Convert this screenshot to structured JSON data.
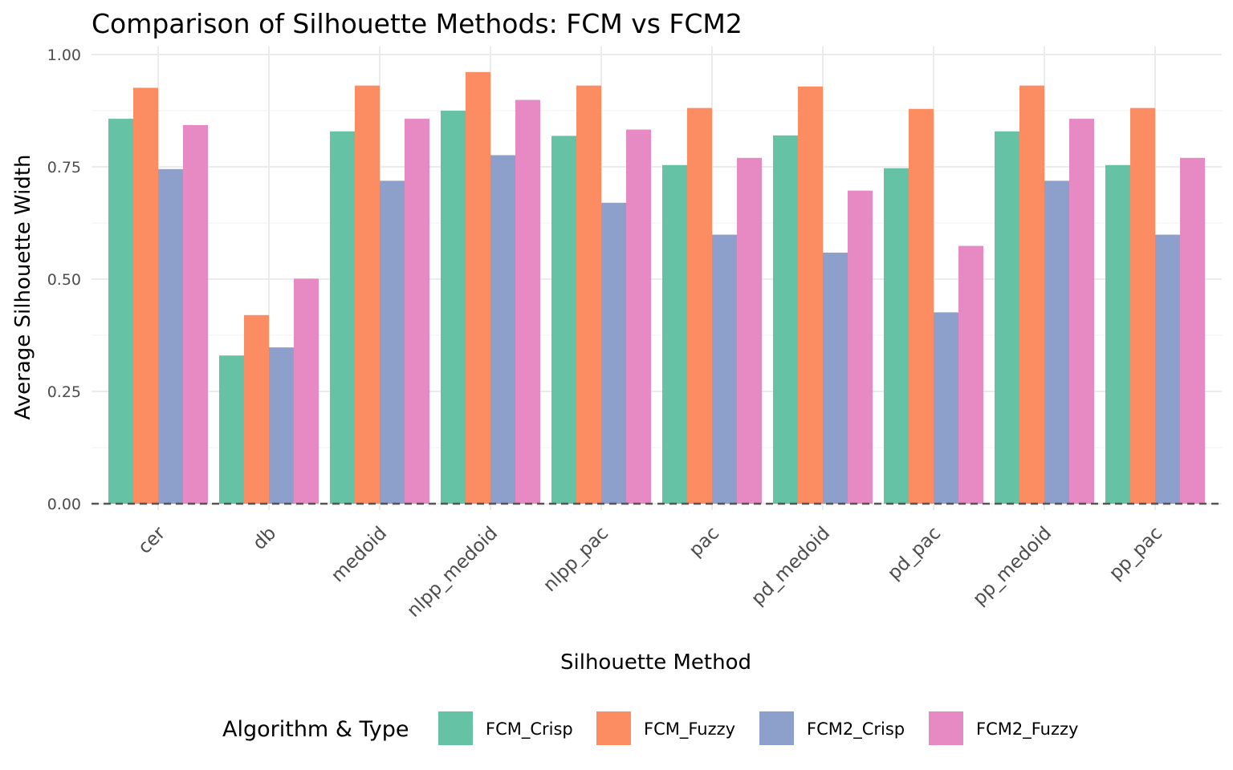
{
  "chart_data": {
    "type": "bar",
    "title": "Comparison of Silhouette Methods: FCM vs FCM2",
    "xlabel": "Silhouette Method",
    "ylabel": "Average Silhouette Width",
    "ylim": [
      0,
      1.0
    ],
    "y_ticks": [
      "0.00",
      "0.25",
      "0.50",
      "0.75",
      "1.00"
    ],
    "grid": true,
    "legend_title": "Algorithm & Type",
    "legend_position": "bottom",
    "reference_line": {
      "y": 0,
      "style": "dashed"
    },
    "categories": [
      "cer",
      "db",
      "medoid",
      "nlpp_medoid",
      "nlpp_pac",
      "pac",
      "pd_medoid",
      "pd_pac",
      "pp_medoid",
      "pp_pac"
    ],
    "series": [
      {
        "name": "FCM_Crisp",
        "color": "#66c2a5",
        "values": [
          0.857,
          0.33,
          0.829,
          0.875,
          0.819,
          0.754,
          0.82,
          0.747,
          0.829,
          0.754
        ]
      },
      {
        "name": "FCM_Fuzzy",
        "color": "#fc8d62",
        "values": [
          0.926,
          0.42,
          0.931,
          0.961,
          0.931,
          0.881,
          0.929,
          0.879,
          0.931,
          0.881
        ]
      },
      {
        "name": "FCM2_Crisp",
        "color": "#8da0cb",
        "values": [
          0.745,
          0.348,
          0.719,
          0.776,
          0.67,
          0.599,
          0.559,
          0.426,
          0.719,
          0.599
        ]
      },
      {
        "name": "FCM2_Fuzzy",
        "color": "#e78ac3",
        "values": [
          0.843,
          0.501,
          0.857,
          0.899,
          0.833,
          0.77,
          0.697,
          0.574,
          0.857,
          0.77
        ]
      }
    ]
  }
}
